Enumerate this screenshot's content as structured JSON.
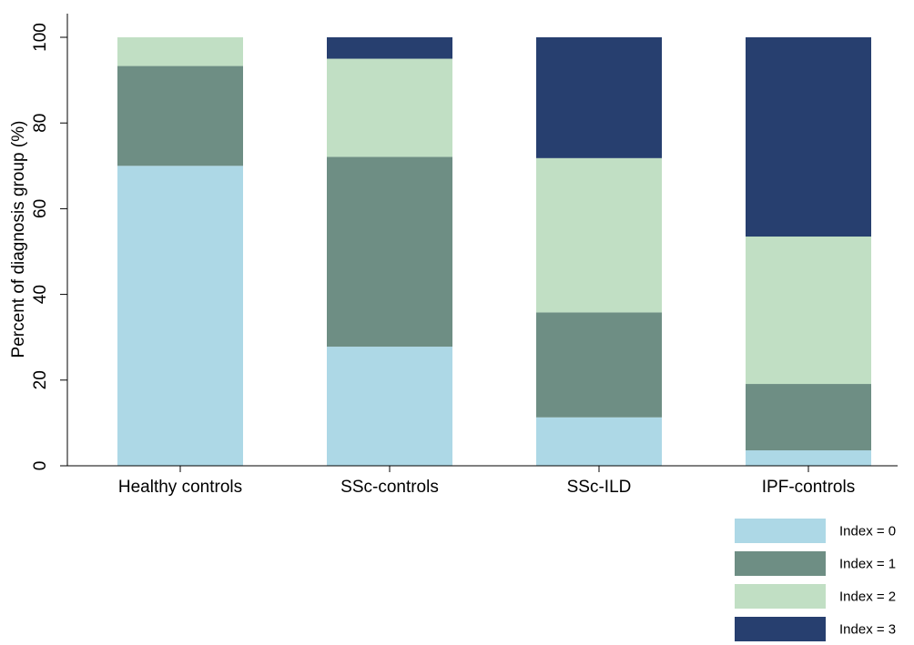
{
  "chart_data": {
    "type": "bar",
    "stacked": true,
    "title": "",
    "xlabel": "",
    "ylabel": "Percent of diagnosis group (%)",
    "ylim": [
      0,
      100
    ],
    "yticks": [
      0,
      20,
      40,
      60,
      80,
      100
    ],
    "grid": false,
    "legend_position": "bottom-right",
    "categories": [
      "Healthy controls",
      "SSc-controls",
      "SSc-ILD",
      "IPF-controls"
    ],
    "series": [
      {
        "name": "Index = 0",
        "color": "#add8e6",
        "values": [
          70.0,
          27.8,
          11.3,
          3.6
        ]
      },
      {
        "name": "Index = 1",
        "color": "#6e8e84",
        "values": [
          23.3,
          44.3,
          24.5,
          15.5
        ]
      },
      {
        "name": "Index = 2",
        "color": "#c1dfc4",
        "values": [
          6.7,
          22.9,
          36.0,
          34.4
        ]
      },
      {
        "name": "Index = 3",
        "color": "#273f6f",
        "values": [
          0.0,
          5.0,
          28.2,
          46.5
        ]
      }
    ]
  }
}
